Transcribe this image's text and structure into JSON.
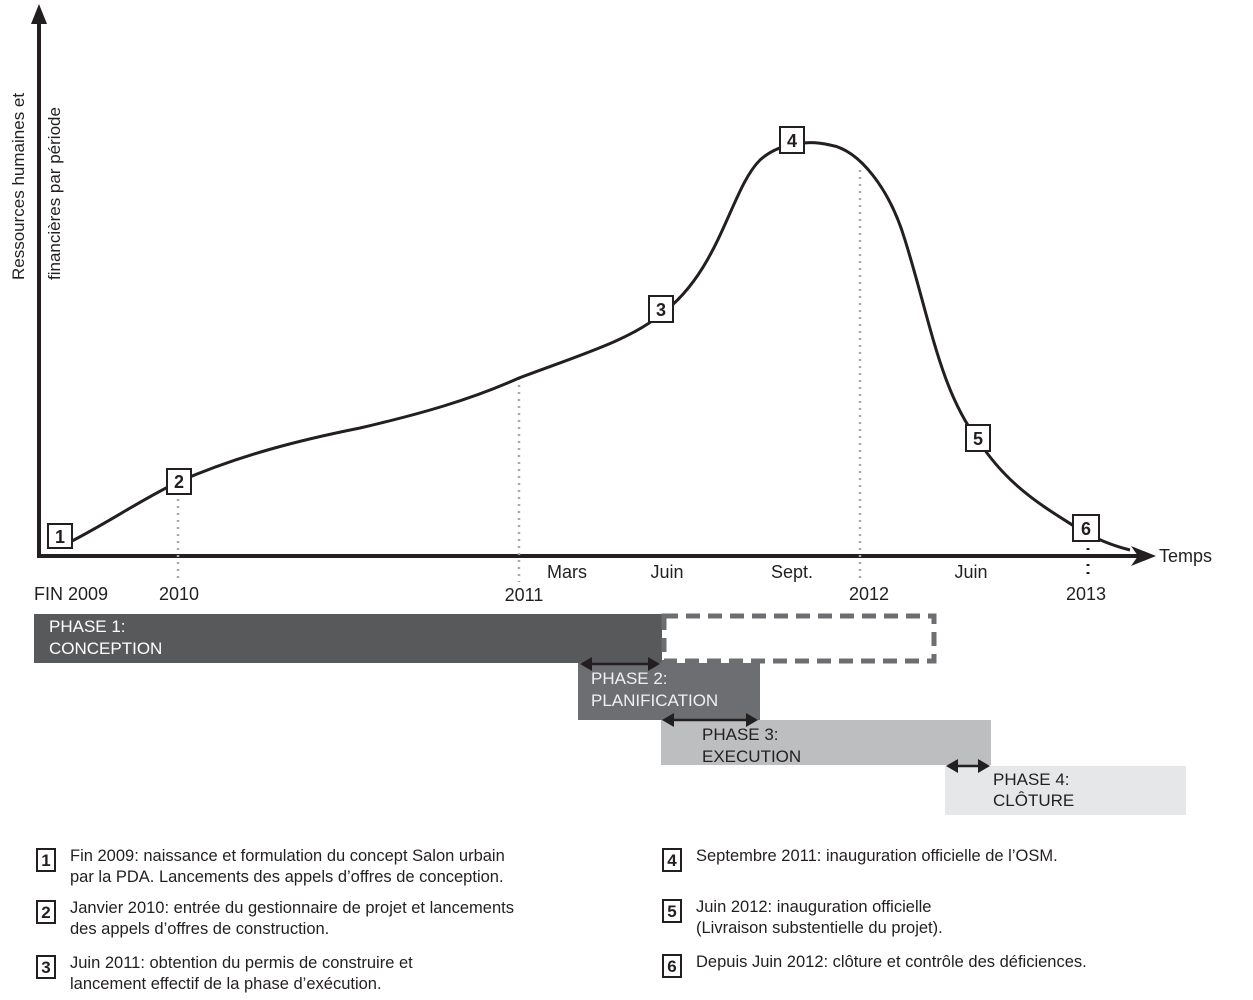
{
  "axes": {
    "y_label_line1": "Ressources humaines et",
    "y_label_line2": "financières par période",
    "x_label": "Temps"
  },
  "ticks": {
    "fin2009": "FIN 2009",
    "y2010": "2010",
    "y2011": "2011",
    "mars": "Mars",
    "juin1": "Juin",
    "sept": "Sept.",
    "y2012": "2012",
    "juin2": "Juin",
    "y2013": "2013"
  },
  "markers": [
    "1",
    "2",
    "3",
    "4",
    "5",
    "6"
  ],
  "phases": [
    {
      "line1": "PHASE 1:",
      "line2": "CONCEPTION",
      "color": "#58595b"
    },
    {
      "line1": "PHASE 2:",
      "line2": "PLANIFICATION",
      "color": "#6d6e71"
    },
    {
      "line1": "PHASE 3:",
      "line2": "EXECUTION",
      "color": "#bcbec0"
    },
    {
      "line1": "PHASE 4:",
      "line2": "CLÔTURE",
      "color": "#e6e7e8"
    }
  ],
  "legend": [
    {
      "num": "1",
      "line1": "Fin 2009: naissance et formulation du concept Salon urbain",
      "line2": "par la PDA. Lancements des appels d’offres de conception."
    },
    {
      "num": "2",
      "line1": "Janvier 2010: entrée du gestionnaire de projet et lancements",
      "line2": "des appels d’offres de construction."
    },
    {
      "num": "3",
      "line1": "Juin 2011: obtention du permis de construire et",
      "line2": "lancement effectif de la phase d’exécution."
    },
    {
      "num": "4",
      "line1": "Septembre 2011: inauguration officielle de l’OSM.",
      "line2": ""
    },
    {
      "num": "5",
      "line1": "Juin 2012: inauguration officielle",
      "line2": "(Livraison substentielle du projet)."
    },
    {
      "num": "6",
      "line1": "Depuis Juin 2012: clôture et contrôle des déficiences.",
      "line2": ""
    }
  ]
}
